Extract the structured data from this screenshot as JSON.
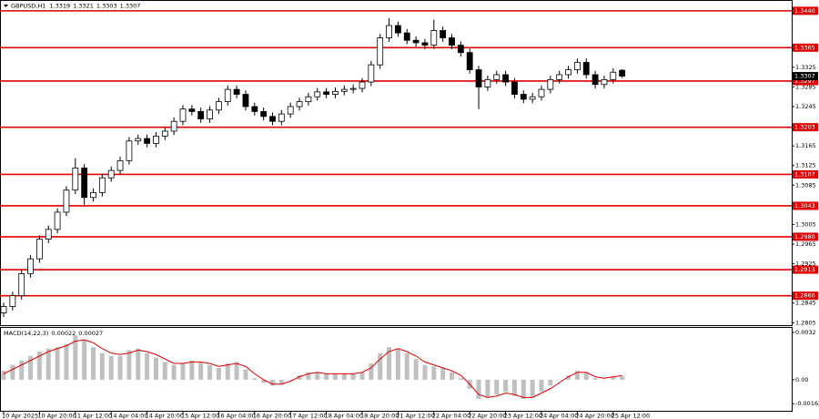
{
  "chart_data": [
    {
      "type": "candlestick",
      "title": "GBPUSD,H1",
      "categories": [
        "10 Apr 2025",
        null,
        null,
        null,
        "10 Apr 20:00",
        null,
        null,
        null,
        "11 Apr 12:00",
        null,
        null,
        null,
        "14 Apr 04:00",
        null,
        null,
        null,
        "14 Apr 20:00",
        null,
        null,
        null,
        "15 Apr 12:00",
        null,
        null,
        null,
        "16 Apr 04:00",
        null,
        null,
        null,
        "16 Apr 20:00",
        null,
        null,
        null,
        "17 Apr 12:00",
        null,
        null,
        null,
        "18 Apr 04:00",
        null,
        null,
        null,
        "18 Apr 20:00",
        null,
        null,
        null,
        "21 Apr 12:00",
        null,
        null,
        null,
        "22 Apr 04:00",
        null,
        null,
        null,
        "22 Apr 20:00",
        null,
        null,
        null,
        "23 Apr 12:00",
        null,
        null,
        null,
        "24 Apr 04:00",
        null,
        null,
        null,
        "24 Apr 20:00",
        null,
        null,
        null,
        "25 Apr 12:00",
        null
      ],
      "open": [
        1.2825,
        1.2838,
        1.286,
        1.2905,
        1.2935,
        1.2975,
        1.2995,
        1.303,
        1.3075,
        1.312,
        1.306,
        1.307,
        1.31,
        1.3115,
        1.3135,
        1.3175,
        1.318,
        1.317,
        1.3185,
        1.3195,
        1.3215,
        1.324,
        1.3235,
        1.322,
        1.3238,
        1.3255,
        1.328,
        1.327,
        1.3245,
        1.3235,
        1.3225,
        1.3215,
        1.323,
        1.3245,
        1.3255,
        1.3265,
        1.3275,
        1.327,
        1.3276,
        1.328,
        1.3282,
        1.3295,
        1.333,
        1.3385,
        1.341,
        1.3395,
        1.338,
        1.3375,
        1.337,
        1.34,
        1.3385,
        1.337,
        1.3355,
        1.332,
        1.3285,
        1.33,
        1.331,
        1.3295,
        1.327,
        1.326,
        1.3265,
        1.328,
        1.33,
        1.331,
        1.332,
        1.3335,
        1.331,
        1.329,
        1.33,
        1.3319
      ],
      "high": [
        1.2846,
        1.2868,
        1.2913,
        1.2943,
        1.2983,
        1.3003,
        1.3038,
        1.3083,
        1.314,
        1.3128,
        1.3078,
        1.3108,
        1.3123,
        1.3143,
        1.3183,
        1.3188,
        1.3188,
        1.3193,
        1.3203,
        1.3223,
        1.3248,
        1.3248,
        1.3243,
        1.3246,
        1.3263,
        1.3288,
        1.3288,
        1.3278,
        1.3253,
        1.3243,
        1.3233,
        1.3238,
        1.3253,
        1.3263,
        1.3273,
        1.3283,
        1.3283,
        1.3284,
        1.3288,
        1.329,
        1.3303,
        1.3338,
        1.3393,
        1.3425,
        1.3418,
        1.3403,
        1.3388,
        1.3383,
        1.3422,
        1.3408,
        1.3393,
        1.3378,
        1.3363,
        1.3328,
        1.3308,
        1.3318,
        1.3318,
        1.3303,
        1.3278,
        1.3273,
        1.3288,
        1.3308,
        1.3318,
        1.3328,
        1.3343,
        1.3343,
        1.3318,
        1.3308,
        1.3323,
        1.3321
      ],
      "low": [
        1.2817,
        1.283,
        1.2852,
        1.2897,
        1.2927,
        1.2967,
        1.2987,
        1.3022,
        1.3067,
        1.3045,
        1.3052,
        1.3062,
        1.3092,
        1.3107,
        1.3127,
        1.3167,
        1.3162,
        1.3162,
        1.3177,
        1.3187,
        1.3207,
        1.3227,
        1.3212,
        1.3212,
        1.323,
        1.3247,
        1.3262,
        1.3237,
        1.3227,
        1.3217,
        1.3207,
        1.3207,
        1.3222,
        1.3237,
        1.3247,
        1.3257,
        1.3262,
        1.3262,
        1.3268,
        1.3272,
        1.3274,
        1.3287,
        1.3322,
        1.3377,
        1.3387,
        1.3372,
        1.3367,
        1.3362,
        1.3362,
        1.3377,
        1.3362,
        1.3347,
        1.3312,
        1.324,
        1.3277,
        1.3292,
        1.3287,
        1.3262,
        1.3252,
        1.3252,
        1.3257,
        1.3272,
        1.3292,
        1.3302,
        1.3312,
        1.3302,
        1.3282,
        1.3282,
        1.3292,
        1.3303
      ],
      "close": [
        1.2838,
        1.286,
        1.2905,
        1.2935,
        1.2975,
        1.2995,
        1.303,
        1.3075,
        1.312,
        1.306,
        1.307,
        1.31,
        1.3115,
        1.3135,
        1.3175,
        1.318,
        1.317,
        1.3185,
        1.3195,
        1.3215,
        1.324,
        1.3235,
        1.322,
        1.3238,
        1.3255,
        1.328,
        1.327,
        1.3245,
        1.3235,
        1.3225,
        1.3215,
        1.323,
        1.3245,
        1.3255,
        1.3265,
        1.3275,
        1.327,
        1.3276,
        1.328,
        1.3282,
        1.3295,
        1.333,
        1.3385,
        1.341,
        1.3395,
        1.338,
        1.3375,
        1.337,
        1.34,
        1.3385,
        1.337,
        1.3355,
        1.332,
        1.3285,
        1.33,
        1.331,
        1.3295,
        1.327,
        1.326,
        1.3265,
        1.328,
        1.33,
        1.331,
        1.332,
        1.3335,
        1.331,
        1.329,
        1.33,
        1.3315,
        1.3307
      ],
      "ylim": [
        1.28,
        1.3462
      ],
      "yticks": [
        1.3325,
        1.3285,
        1.3245,
        1.3165,
        1.3125,
        1.3085,
        1.3005,
        1.2965,
        1.2925,
        1.2845,
        1.2805
      ],
      "levels": [
        {
          "value": 1.344,
          "label": "1.3440"
        },
        1.3365,
        1.3297,
        1.3203,
        1.3107,
        1.3043,
        {
          "value": 1.298,
          "label": "1.2980"
        },
        1.2913,
        {
          "value": 1.286,
          "label": "1.2860"
        }
      ],
      "level_color": "#e00000",
      "up_color": "#ffffff",
      "down_color": "#000000"
    },
    {
      "type": "macd",
      "title": "MACD(14,22,3)",
      "color": "#c0c0c0",
      "values": [
        0.0006,
        0.001,
        0.0013,
        0.0016,
        0.0019,
        0.0021,
        0.0022,
        0.0024,
        0.003,
        0.0027,
        0.0022,
        0.0018,
        0.0016,
        0.0016,
        0.002,
        0.0021,
        0.0018,
        0.0015,
        0.0012,
        0.001,
        0.0011,
        0.0013,
        0.0012,
        0.001,
        0.0008,
        0.0011,
        0.0012,
        0.0007,
        0.0001,
        -0.0002,
        -0.0004,
        -0.0003,
        0.0,
        0.0003,
        0.0005,
        0.0005,
        0.0004,
        0.0004,
        0.0004,
        0.0004,
        0.0005,
        0.0011,
        0.0018,
        0.0022,
        0.0021,
        0.0018,
        0.0014,
        0.001,
        0.0009,
        0.0008,
        0.0005,
        0.0001,
        -0.0006,
        -0.0013,
        -0.0012,
        -0.001,
        -0.0008,
        -0.0011,
        -0.0013,
        -0.0012,
        -0.0008,
        -0.0004,
        0.0,
        0.0003,
        0.0006,
        0.0005,
        0.0001,
        0.0,
        0.0002,
        0.00022
      ],
      "signal": {
        "color": "#e00000",
        "values": [
          0.0004,
          0.0007,
          0.001,
          0.0013,
          0.0016,
          0.0019,
          0.0021,
          0.0023,
          0.0026,
          0.0027,
          0.0025,
          0.0021,
          0.0018,
          0.0017,
          0.0018,
          0.002,
          0.0019,
          0.0017,
          0.0014,
          0.0011,
          0.0011,
          0.0012,
          0.0012,
          0.0011,
          0.0009,
          0.001,
          0.0011,
          0.0009,
          0.0004,
          0.0,
          -0.0003,
          -0.0003,
          -0.0001,
          0.0002,
          0.0004,
          0.0005,
          0.0004,
          0.0004,
          0.0004,
          0.0004,
          0.0005,
          0.0008,
          0.0014,
          0.0019,
          0.0021,
          0.0019,
          0.0016,
          0.0012,
          0.001,
          0.0008,
          0.0006,
          0.0003,
          -0.0003,
          -0.001,
          -0.0012,
          -0.0011,
          -0.0009,
          -0.001,
          -0.0012,
          -0.0012,
          -0.0009,
          -0.0006,
          -0.0002,
          0.0002,
          0.0005,
          0.0005,
          0.0002,
          0.0001,
          0.0002,
          0.00027
        ]
      },
      "ylim": [
        -0.0021,
        0.0035
      ],
      "yticks": [
        0.0032,
        {
          "value": 0,
          "label": "0.00"
        },
        -0.00162
      ]
    }
  ]
}
